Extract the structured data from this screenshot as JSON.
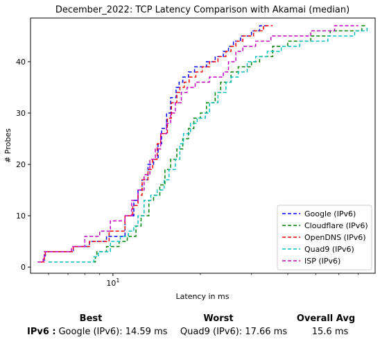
{
  "chart_data": {
    "type": "line",
    "title": "December_2022: TCP Latency Comparison with Akamai (median)",
    "xlabel": "Latency in ms",
    "ylabel": "# Probes",
    "x_scale": "log",
    "xlim": [
      5.2,
      80
    ],
    "ylim": [
      -1.2,
      48.5
    ],
    "x_ticks": [
      {
        "value": 10,
        "label": "10^1"
      }
    ],
    "y_ticks": [
      0,
      10,
      20,
      30,
      40
    ],
    "grid": false,
    "legend": "bottom-right",
    "series": [
      {
        "name": "Google (IPv6)",
        "color": "#0000ff",
        "x": [
          5.6,
          5.8,
          5.85,
          7.3,
          8.3,
          9.5,
          11.0,
          11.8,
          12.2,
          12.6,
          13.2,
          13.8,
          14.3,
          14.7,
          15.3,
          15.8,
          16.5,
          16.9,
          17.4,
          18.2,
          19.1,
          20.0,
          21.0,
          22.5,
          24.0,
          25.0,
          26.0,
          27.5,
          30.0,
          32.0,
          34.5
        ],
        "y": [
          1,
          2,
          3,
          4,
          5,
          6,
          10,
          13,
          15,
          17,
          20,
          21,
          24,
          27,
          30,
          33,
          35,
          36,
          37,
          38,
          39,
          39,
          40,
          41,
          42,
          43,
          44,
          45,
          46,
          47,
          47
        ]
      },
      {
        "name": "Cloudflare (IPv6)",
        "color": "#008000",
        "x": [
          6.0,
          8.7,
          8.8,
          9.5,
          10.5,
          11.2,
          12.0,
          12.5,
          13.3,
          13.8,
          14.5,
          15.1,
          15.8,
          16.6,
          17.4,
          18.2,
          19.0,
          20.0,
          21.0,
          22.5,
          23.5,
          25.5,
          27.0,
          30.0,
          32.0,
          35.5,
          40.0,
          48.0,
          56.0,
          65.0,
          72.0,
          75.0
        ],
        "y": [
          1,
          2,
          3,
          4,
          5,
          6,
          8,
          10,
          13,
          14,
          16,
          19,
          21,
          23,
          25,
          27,
          29,
          30,
          32,
          34,
          36,
          38,
          39,
          40,
          41,
          43,
          44,
          45,
          46,
          46,
          47,
          47
        ]
      },
      {
        "name": "OpenDNS (IPv6)",
        "color": "#ff0000",
        "x": [
          5.65,
          5.8,
          5.85,
          7.3,
          8.3,
          9.7,
          11.0,
          11.7,
          12.2,
          12.6,
          13.2,
          13.7,
          14.2,
          14.6,
          15.4,
          15.9,
          16.6,
          17.0,
          17.6,
          18.3,
          19.3,
          20.3,
          21.5,
          23.0,
          24.5,
          25.5,
          26.5,
          28.0,
          30.5,
          33.0,
          35.5
        ],
        "y": [
          1,
          2,
          3,
          4,
          5,
          7,
          10,
          12,
          14,
          17,
          19,
          21,
          24,
          26,
          29,
          32,
          34,
          35,
          36,
          37,
          38,
          39,
          40,
          41,
          42,
          43,
          44,
          45,
          46,
          47,
          47
        ]
      },
      {
        "name": "Quad9 (IPv6)",
        "color": "#00bfbf",
        "x": [
          6.0,
          8.6,
          8.9,
          9.8,
          10.6,
          11.3,
          11.8,
          12.2,
          12.8,
          13.5,
          14.2,
          15.0,
          15.6,
          16.4,
          17.0,
          17.5,
          18.5,
          19.5,
          20.8,
          21.5,
          23.0,
          24.5,
          25.5,
          27.0,
          29.0,
          31.0,
          34.0,
          38.0,
          44.0,
          55.0,
          68.0,
          75.0
        ],
        "y": [
          1,
          2,
          3,
          5,
          6,
          7,
          8,
          10,
          13,
          14,
          15,
          17,
          19,
          21,
          24,
          26,
          28,
          29,
          30,
          32,
          34,
          36,
          37,
          38,
          40,
          41,
          42,
          43,
          44,
          45,
          46,
          47
        ]
      },
      {
        "name": "ISP (IPv6)",
        "color": "#bf00bf",
        "x": [
          5.5,
          5.75,
          5.8,
          7.2,
          8.0,
          9.0,
          9.8,
          11.0,
          11.6,
          12.2,
          12.8,
          13.4,
          14.0,
          14.6,
          15.3,
          15.8,
          16.4,
          17.2,
          18.0,
          19.2,
          21.5,
          24.0,
          25.0,
          26.5,
          28.0,
          31.0,
          35.0,
          40.0,
          48.0,
          58.0,
          70.0
        ],
        "y": [
          1,
          2,
          3,
          4,
          6,
          7,
          9,
          10,
          13,
          15,
          18,
          21,
          23,
          26,
          28,
          30,
          32,
          34,
          35,
          36,
          37,
          38,
          40,
          42,
          43,
          44,
          45,
          45,
          46,
          47,
          47
        ]
      }
    ]
  },
  "summary": {
    "headers": {
      "best": "Best",
      "worst": "Worst",
      "overall": "Overall Avg"
    },
    "rows": [
      {
        "label": "IPv6 :",
        "best": "Google (IPv6): 14.59 ms",
        "worst": "Quad9 (IPv6): 17.66 ms",
        "overall": "15.6 ms"
      }
    ]
  }
}
